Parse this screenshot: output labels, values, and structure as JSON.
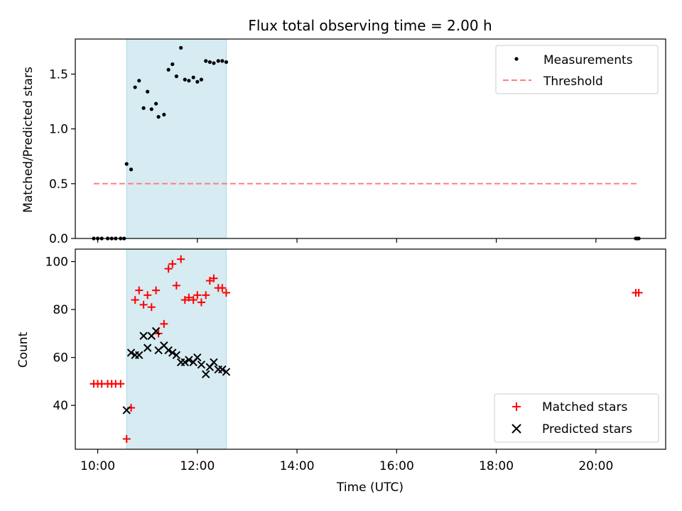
{
  "title": "Flux total observing time = 2.00 h",
  "colors": {
    "shade": "#add8e6",
    "threshold": "#ff7f7f",
    "measurement": "#000000",
    "matched": "#ff0000",
    "predicted": "#000000"
  },
  "chart_data": [
    {
      "type": "scatter",
      "panel": "top",
      "ylabel": "Matched/Predicted stars",
      "ylim": [
        0,
        1.82
      ],
      "yticks": [
        0.0,
        0.5,
        1.0,
        1.5
      ],
      "ytick_labels": [
        "0.0",
        "0.5",
        "1.0",
        "1.5"
      ],
      "xlim_hours": [
        9.55,
        21.4
      ],
      "shaded_interval_hours": [
        10.58,
        12.58
      ],
      "legend": [
        "Measurements",
        "Threshold"
      ],
      "legend_position": "top-right",
      "threshold": {
        "value": 0.5,
        "x_hours": [
          9.92,
          20.83
        ]
      },
      "series": [
        {
          "name": "Measurements",
          "points": [
            [
              9.92,
              0.0
            ],
            [
              10.0,
              0.0
            ],
            [
              10.08,
              0.0
            ],
            [
              10.2,
              0.0
            ],
            [
              10.28,
              0.0
            ],
            [
              10.36,
              0.0
            ],
            [
              10.46,
              0.0
            ],
            [
              10.53,
              0.0
            ],
            [
              10.58,
              0.68
            ],
            [
              10.67,
              0.63
            ],
            [
              10.75,
              1.38
            ],
            [
              10.83,
              1.44
            ],
            [
              10.92,
              1.19
            ],
            [
              11.0,
              1.34
            ],
            [
              11.08,
              1.18
            ],
            [
              11.17,
              1.23
            ],
            [
              11.22,
              1.11
            ],
            [
              11.33,
              1.13
            ],
            [
              11.42,
              1.54
            ],
            [
              11.5,
              1.59
            ],
            [
              11.58,
              1.48
            ],
            [
              11.67,
              1.74
            ],
            [
              11.75,
              1.45
            ],
            [
              11.83,
              1.44
            ],
            [
              11.92,
              1.47
            ],
            [
              12.0,
              1.43
            ],
            [
              12.08,
              1.45
            ],
            [
              12.17,
              1.62
            ],
            [
              12.25,
              1.61
            ],
            [
              12.33,
              1.6
            ],
            [
              12.42,
              1.62
            ],
            [
              12.5,
              1.62
            ],
            [
              12.58,
              1.61
            ],
            [
              20.8,
              0.0
            ],
            [
              20.83,
              0.0
            ],
            [
              20.86,
              0.0
            ]
          ]
        }
      ]
    },
    {
      "type": "scatter",
      "panel": "bottom",
      "ylabel": "Count",
      "xlabel": "Time (UTC)",
      "ylim": [
        21.7,
        105.2
      ],
      "yticks": [
        40,
        60,
        80,
        100
      ],
      "ytick_labels": [
        "40",
        "60",
        "80",
        "100"
      ],
      "xlim_hours": [
        9.55,
        21.4
      ],
      "xticks_hours": [
        10,
        12,
        14,
        16,
        18,
        20
      ],
      "xtick_labels": [
        "10:00",
        "12:00",
        "14:00",
        "16:00",
        "18:00",
        "20:00"
      ],
      "shaded_interval_hours": [
        10.58,
        12.58
      ],
      "legend": [
        "Matched stars",
        "Predicted stars"
      ],
      "legend_position": "bottom-right",
      "series": [
        {
          "name": "Matched stars",
          "marker": "plus",
          "points": [
            [
              9.92,
              49
            ],
            [
              10.0,
              49
            ],
            [
              10.08,
              49
            ],
            [
              10.2,
              49
            ],
            [
              10.28,
              49
            ],
            [
              10.36,
              49
            ],
            [
              10.46,
              49
            ],
            [
              10.58,
              26
            ],
            [
              10.67,
              39
            ],
            [
              10.75,
              84
            ],
            [
              10.83,
              88
            ],
            [
              10.92,
              82
            ],
            [
              11.0,
              86
            ],
            [
              11.08,
              81
            ],
            [
              11.17,
              88
            ],
            [
              11.22,
              70
            ],
            [
              11.33,
              74
            ],
            [
              11.42,
              97
            ],
            [
              11.5,
              99
            ],
            [
              11.58,
              90
            ],
            [
              11.67,
              101
            ],
            [
              11.75,
              84
            ],
            [
              11.83,
              85
            ],
            [
              11.92,
              84
            ],
            [
              12.0,
              86
            ],
            [
              12.08,
              83
            ],
            [
              12.17,
              86
            ],
            [
              12.25,
              92
            ],
            [
              12.33,
              93
            ],
            [
              12.42,
              89
            ],
            [
              12.5,
              89
            ],
            [
              12.58,
              87
            ],
            [
              20.8,
              87
            ],
            [
              20.86,
              87
            ]
          ]
        },
        {
          "name": "Predicted stars",
          "marker": "x",
          "points": [
            [
              10.58,
              38
            ],
            [
              10.67,
              62
            ],
            [
              10.75,
              61
            ],
            [
              10.83,
              61
            ],
            [
              10.92,
              69
            ],
            [
              11.0,
              64
            ],
            [
              11.08,
              69
            ],
            [
              11.17,
              71
            ],
            [
              11.22,
              63
            ],
            [
              11.33,
              65
            ],
            [
              11.42,
              63
            ],
            [
              11.5,
              62
            ],
            [
              11.58,
              61
            ],
            [
              11.67,
              58
            ],
            [
              11.75,
              58
            ],
            [
              11.83,
              59
            ],
            [
              11.92,
              58
            ],
            [
              12.0,
              60
            ],
            [
              12.08,
              57
            ],
            [
              12.17,
              53
            ],
            [
              12.25,
              56
            ],
            [
              12.33,
              58
            ],
            [
              12.42,
              55
            ],
            [
              12.5,
              55
            ],
            [
              12.58,
              54
            ]
          ]
        }
      ]
    }
  ]
}
